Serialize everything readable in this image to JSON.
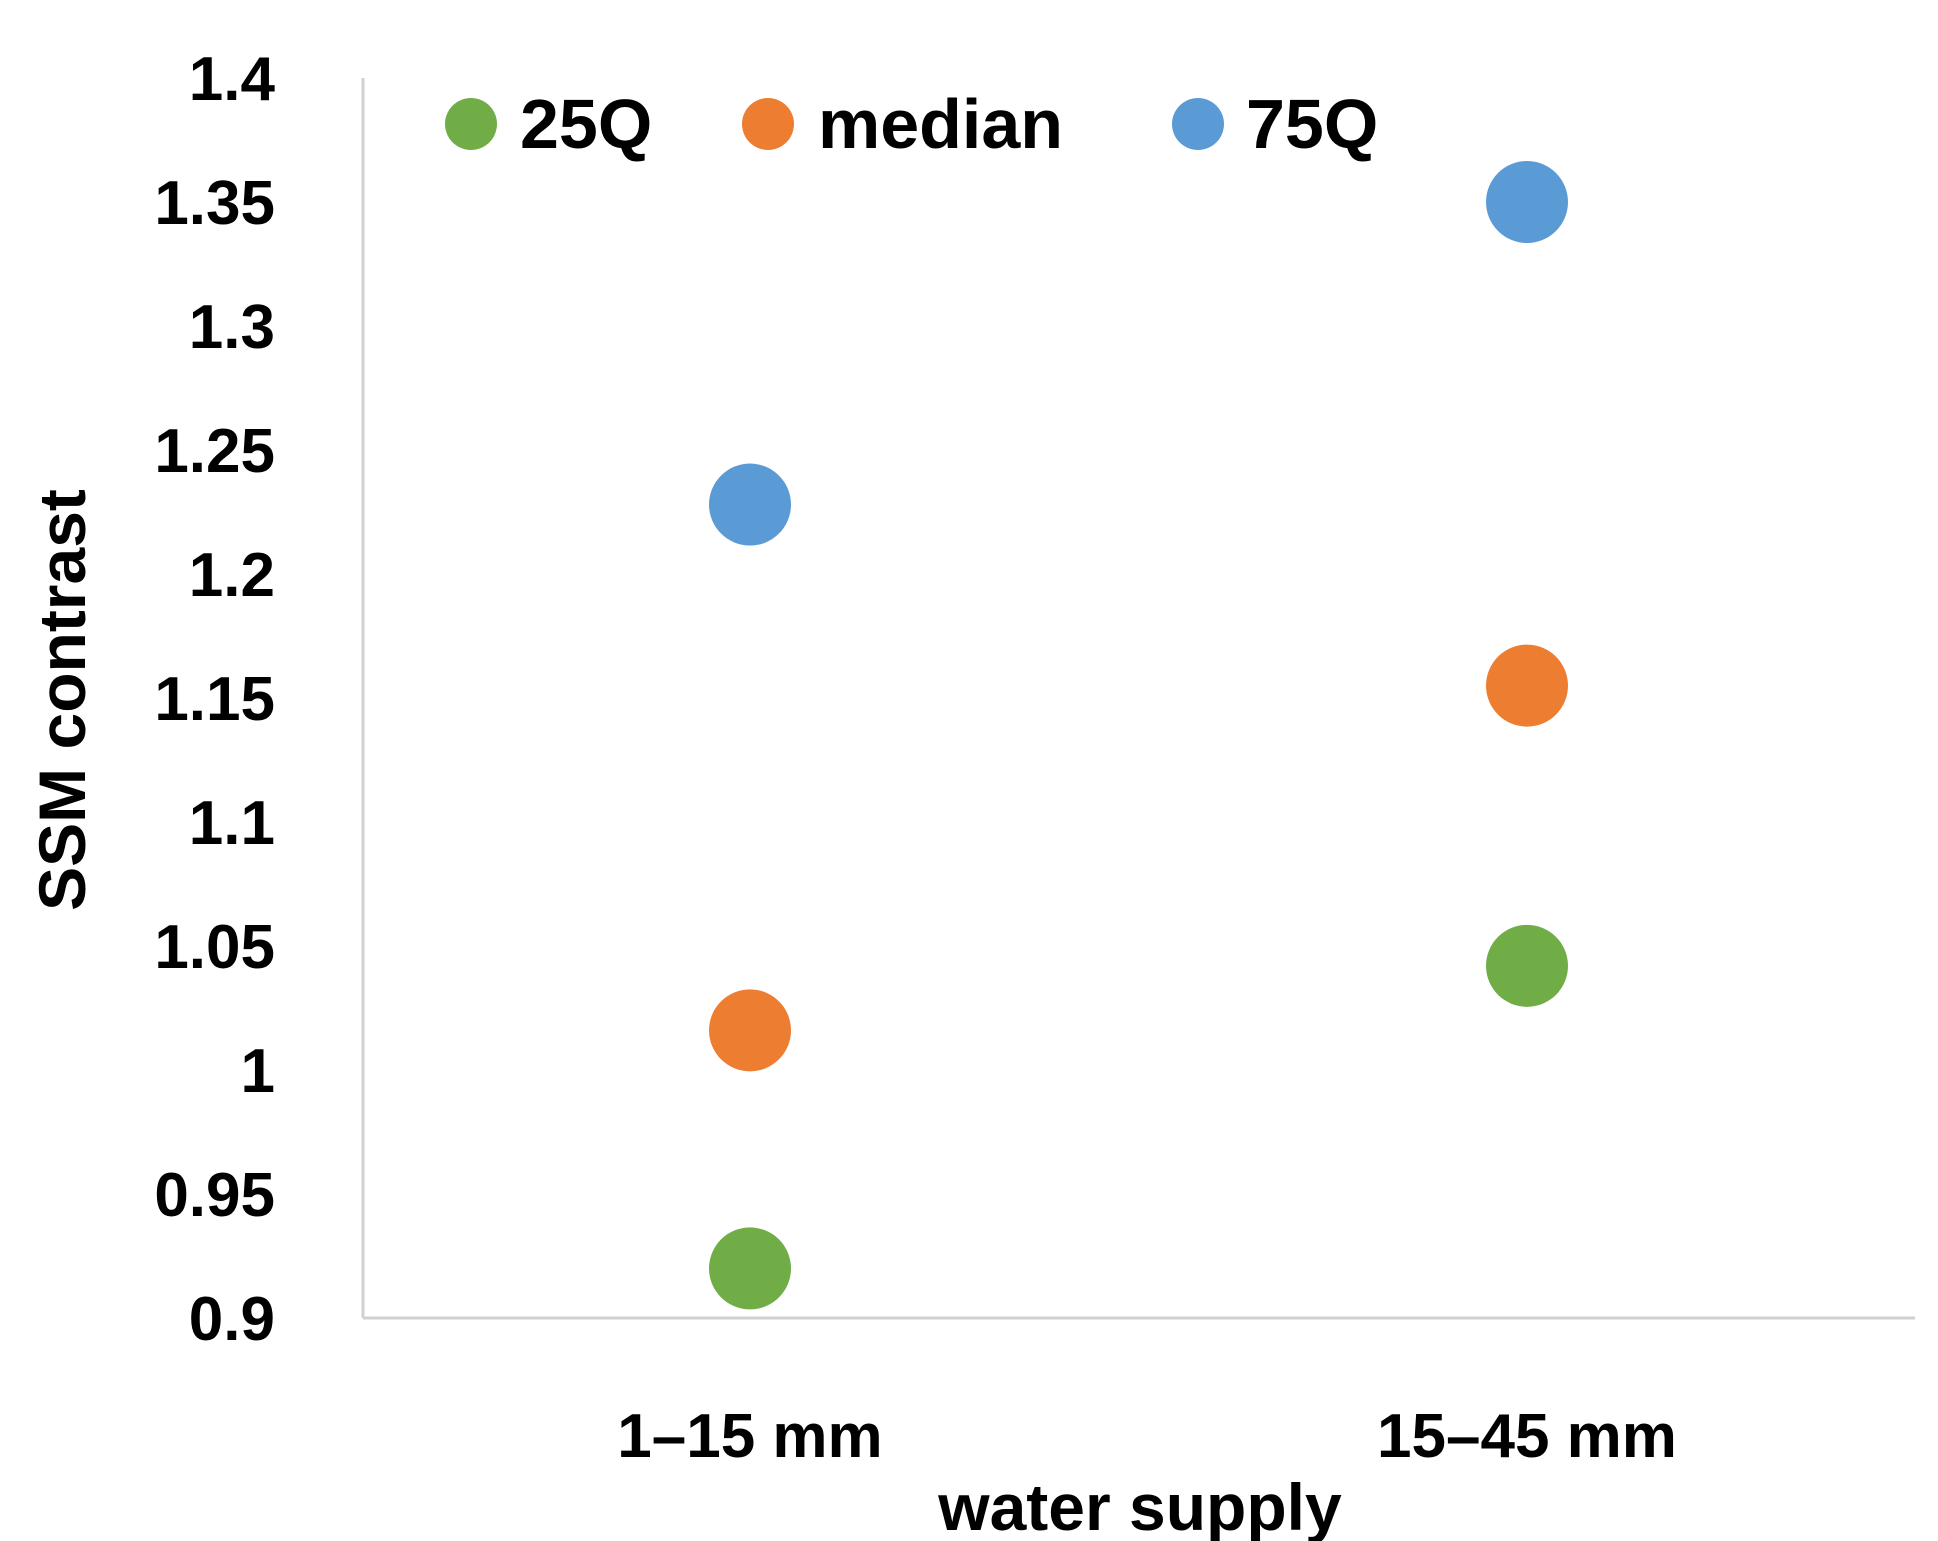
{
  "chart_data": {
    "type": "scatter",
    "categories": [
      "1–15 mm",
      "15–45 mm"
    ],
    "series": [
      {
        "name": "25Q",
        "color": "#70AD47",
        "values": [
          0.92,
          1.042
        ]
      },
      {
        "name": "median",
        "color": "#ED7D31",
        "values": [
          1.016,
          1.155
        ]
      },
      {
        "name": "75Q",
        "color": "#5B9BD5",
        "values": [
          1.228,
          1.35
        ]
      }
    ],
    "xlabel": "water supply",
    "ylabel": "SSM contrast",
    "ylim": [
      0.9,
      1.4
    ],
    "yticks": [
      "0.9",
      "0.95",
      "1",
      "1.05",
      "1.1",
      "1.15",
      "1.2",
      "1.25",
      "1.3",
      "1.35",
      "1.4"
    ],
    "grid": false,
    "legend_position": "top-left"
  }
}
